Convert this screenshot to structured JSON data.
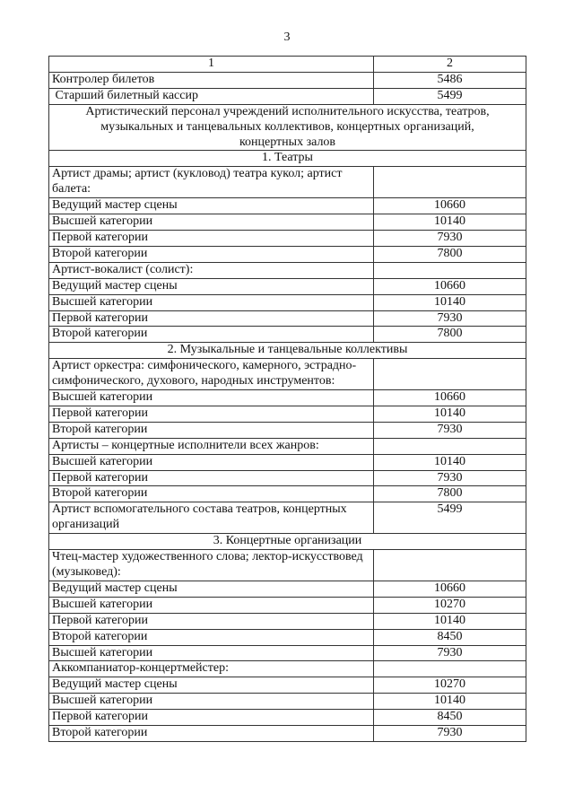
{
  "page_number": "3",
  "header": [
    "1",
    "2"
  ],
  "rows": [
    {
      "t": "row",
      "label": "Контролер билетов",
      "value": "5486"
    },
    {
      "t": "row",
      "label": " Старший билетный кассир",
      "value": "5499"
    },
    {
      "t": "section",
      "label": "Артистический персонал учреждений исполнительного искусства, театров, музыкальных и танцевальных коллективов, концертных организаций, концертных залов"
    },
    {
      "t": "section",
      "label": "1.  Театры"
    },
    {
      "t": "row",
      "label": "Артист драмы; артист (кукловод) театра кукол; артист балета:",
      "value": ""
    },
    {
      "t": "row",
      "label": "Ведущий мастер сцены",
      "value": "10660"
    },
    {
      "t": "row",
      "label": "Высшей категории",
      "value": "10140"
    },
    {
      "t": "row",
      "label": "Первой категории",
      "value": "7930"
    },
    {
      "t": "row",
      "label": "Второй категории",
      "value": "7800"
    },
    {
      "t": "row",
      "label": "Артист-вокалист (солист):",
      "value": ""
    },
    {
      "t": "row",
      "label": "Ведущий мастер сцены",
      "value": "10660"
    },
    {
      "t": "row",
      "label": "Высшей категории",
      "value": "10140"
    },
    {
      "t": "row",
      "label": "Первой категории",
      "value": "7930"
    },
    {
      "t": "row",
      "label": "Второй категории",
      "value": "7800"
    },
    {
      "t": "section",
      "label": "2.  Музыкальные и танцевальные коллективы"
    },
    {
      "t": "row",
      "label": "Артист оркестра: симфонического, камерного, эстрадно-симфонического, духового, народных инструментов:",
      "value": ""
    },
    {
      "t": "row",
      "label": "Высшей категории",
      "value": "10660"
    },
    {
      "t": "row",
      "label": "Первой категории",
      "value": "10140"
    },
    {
      "t": "row",
      "label": "Второй категории",
      "value": "7930"
    },
    {
      "t": "row",
      "label": "Артисты – концертные исполнители всех жанров:",
      "value": ""
    },
    {
      "t": "row",
      "label": "Высшей категории",
      "value": "10140"
    },
    {
      "t": "row",
      "label": "Первой категории",
      "value": "7930"
    },
    {
      "t": "row",
      "label": "Второй категории",
      "value": "7800"
    },
    {
      "t": "row",
      "label": "Артист вспомогательного состава театров, концертных организаций",
      "value": "5499"
    },
    {
      "t": "section",
      "label": "3.  Концертные организации"
    },
    {
      "t": "row",
      "label": "Чтец-мастер художественного слова; лектор-искусствовед (музыковед):",
      "value": ""
    },
    {
      "t": "row",
      "label": "Ведущий мастер сцены",
      "value": "10660"
    },
    {
      "t": "row",
      "label": "Высшей категории",
      "value": "10270"
    },
    {
      "t": "row",
      "label": "Первой категории",
      "value": "10140"
    },
    {
      "t": "row",
      "label": "Второй категории",
      "value": "8450"
    },
    {
      "t": "row",
      "label": "Высшей категории",
      "value": "7930"
    },
    {
      "t": "row",
      "label": "Аккомпаниатор-концертмейстер:",
      "value": ""
    },
    {
      "t": "row",
      "label": "Ведущий мастер сцены",
      "value": "10270"
    },
    {
      "t": "row",
      "label": "Высшей категории",
      "value": "10140"
    },
    {
      "t": "row",
      "label": "Первой категории",
      "value": "8450"
    },
    {
      "t": "row",
      "label": "Второй категории",
      "value": "7930"
    }
  ]
}
